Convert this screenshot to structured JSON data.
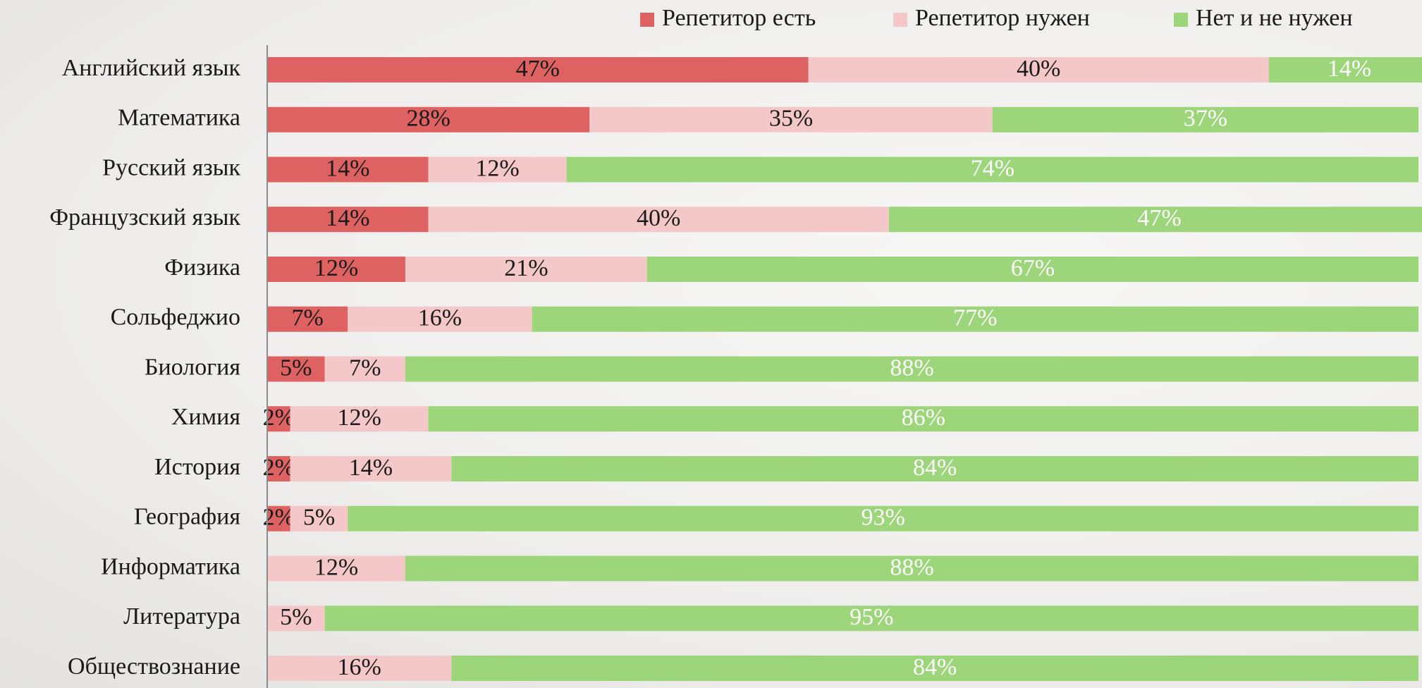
{
  "chart_data": {
    "type": "stacked_bar_horizontal",
    "categories": [
      "Английский язык",
      "Математика",
      "Русский язык",
      "Французский язык",
      "Физика",
      "Сольфеджио",
      "Биология",
      "Химия",
      "История",
      "География",
      "Информатика",
      "Литература",
      "Обществознание"
    ],
    "series": [
      {
        "name": "Репетитор есть",
        "color": "#de6262",
        "label_color": "#1a1a1a",
        "values": [
          47,
          28,
          14,
          14,
          12,
          7,
          5,
          2,
          2,
          2,
          null,
          null,
          null
        ],
        "value_labels": [
          "47%",
          "28%",
          "14%",
          "14%",
          "12%",
          "7%",
          "5%",
          "2%",
          "2%",
          "2%",
          null,
          null,
          null
        ]
      },
      {
        "name": "Репетитор нужен",
        "color": "#f4c8c8",
        "label_color": "#1a1a1a",
        "values": [
          40,
          35,
          12,
          40,
          21,
          16,
          7,
          12,
          14,
          5,
          12,
          5,
          16
        ],
        "value_labels": [
          "40%",
          "35%",
          "12%",
          "40%",
          "21%",
          "16%",
          "7%",
          "12%",
          "14%",
          "5%",
          "12%",
          "5%",
          "16%"
        ]
      },
      {
        "name": "Нет и не нужен",
        "color": "#9dd67a",
        "label_color": "#ffffff",
        "values": [
          14,
          37,
          74,
          47,
          67,
          77,
          88,
          86,
          84,
          93,
          88,
          95,
          84
        ],
        "value_labels": [
          "14%",
          "37%",
          "74%",
          "47%",
          "67%",
          "77%",
          "88%",
          "86%",
          "84%",
          "93%",
          "88%",
          "95%",
          "84%"
        ]
      }
    ],
    "xlim": [
      0,
      100
    ],
    "legend": "top-right"
  }
}
